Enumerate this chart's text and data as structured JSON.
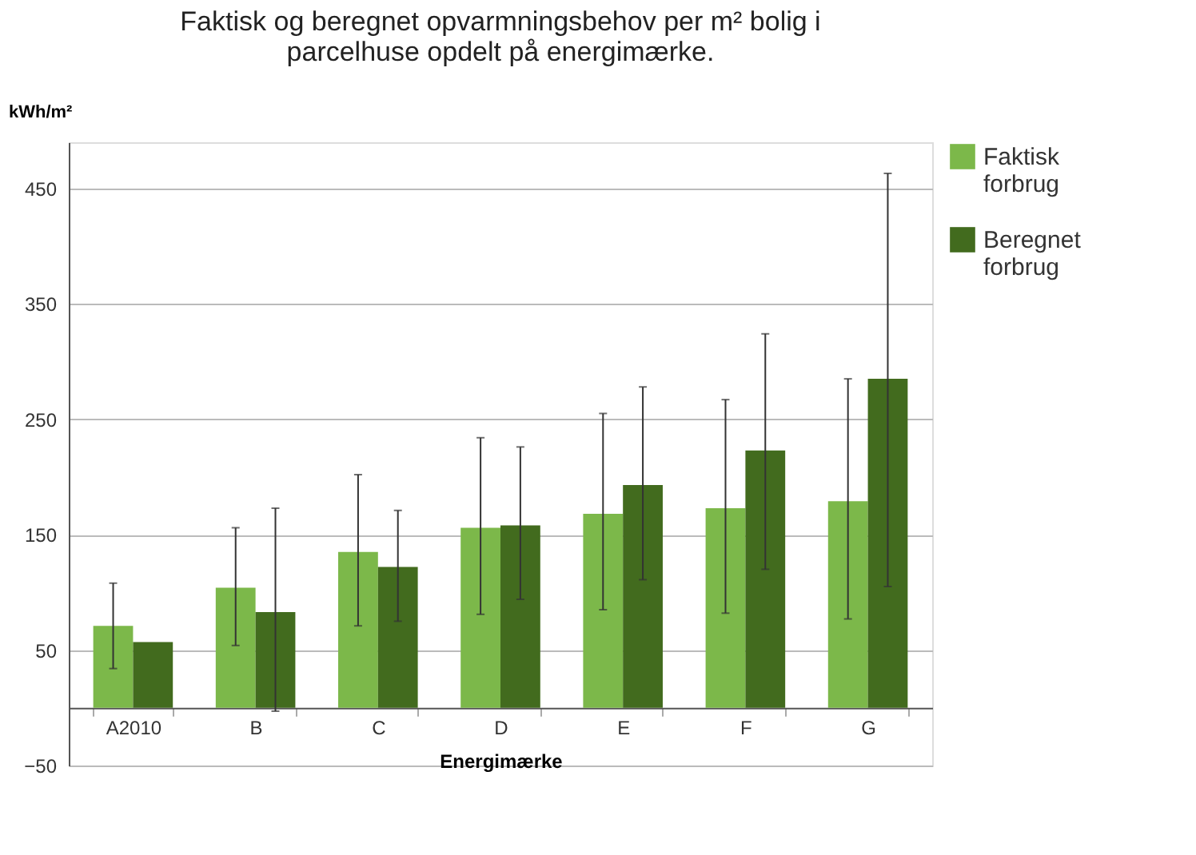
{
  "chart_data": {
    "type": "bar",
    "title": [
      "Faktisk og beregnet opvarmningsbehov per m² bolig i",
      "parcelhuse opdelt på energimærke."
    ],
    "xlabel": "Energimærke",
    "ylabel": "kWh/m²",
    "categories": [
      "A2010",
      "B",
      "C",
      "D",
      "E",
      "F",
      "G"
    ],
    "series": [
      {
        "name": "Faktisk forbrug",
        "color": "#7cb84a",
        "values": [
          71,
          104,
          135,
          156,
          168,
          173,
          179
        ],
        "errors": [
          [
            34,
            108
          ],
          [
            54,
            156
          ],
          [
            71,
            202
          ],
          [
            81,
            234
          ],
          [
            85,
            255
          ],
          [
            82,
            267
          ],
          [
            77,
            285
          ]
        ]
      },
      {
        "name": "Beregnet forbrug",
        "color": "#426b1e",
        "values": [
          57,
          83,
          122,
          158,
          193,
          223,
          285
        ],
        "errors": [
          null,
          [
            -3,
            173
          ],
          [
            75,
            171
          ],
          [
            94,
            226
          ],
          [
            111,
            278
          ],
          [
            120,
            324
          ],
          [
            105,
            463
          ]
        ]
      }
    ],
    "ylim": [
      -50,
      490
    ],
    "yticks": [
      -50,
      50,
      150,
      250,
      350,
      450
    ],
    "grid": "y",
    "legend": "right"
  }
}
